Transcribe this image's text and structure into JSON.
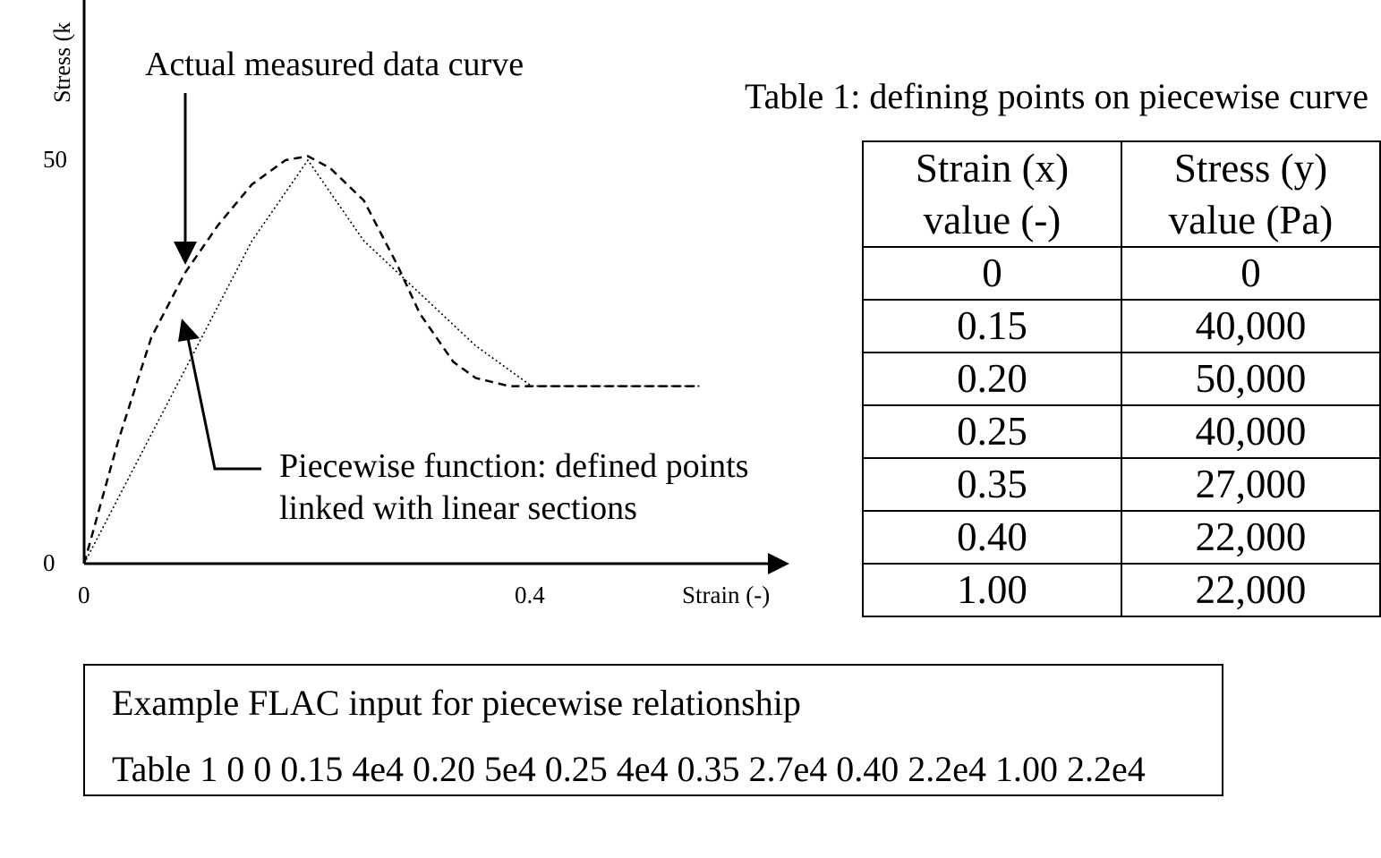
{
  "chart": {
    "ylabel": "Stress (k",
    "xlabel": "Strain (-)",
    "x_ticks": [
      "0",
      "0.4"
    ],
    "y_ticks": [
      "0",
      "50"
    ],
    "annotation_measured": "Actual measured data curve",
    "annotation_piecewise_line1": "Piecewise function: defined points",
    "annotation_piecewise_line2": "linked with linear sections"
  },
  "chart_data": {
    "type": "line",
    "xlabel": "Strain (-)",
    "ylabel": "Stress (k",
    "xlim": [
      0,
      0.63
    ],
    "ylim": [
      0,
      50
    ],
    "series": [
      {
        "style": "dotted",
        "x": [
          0,
          0.15,
          0.2,
          0.25,
          0.35,
          0.4,
          0.55
        ],
        "y": [
          0,
          40,
          50,
          40,
          27,
          22,
          22
        ]
      },
      {
        "style": "dashed",
        "x": [
          0,
          0.03,
          0.06,
          0.09,
          0.12,
          0.15,
          0.18,
          0.2,
          0.22,
          0.25,
          0.28,
          0.3,
          0.33,
          0.35,
          0.38,
          0.4,
          0.45,
          0.5,
          0.55
        ],
        "y": [
          0,
          15,
          28,
          36,
          42,
          47,
          50,
          50.5,
          49,
          45,
          37,
          31,
          25,
          23,
          22,
          22,
          22,
          22,
          22
        ]
      }
    ]
  },
  "table": {
    "caption": "Table 1: defining points on piecewise curve",
    "headers": [
      {
        "line1": "Strain (x)",
        "line2": "value (-)"
      },
      {
        "line1": "Stress (y)",
        "line2": "value (Pa)"
      }
    ],
    "rows": [
      [
        "0",
        "0"
      ],
      [
        "0.15",
        "40,000"
      ],
      [
        "0.20",
        "50,000"
      ],
      [
        "0.25",
        "40,000"
      ],
      [
        "0.35",
        "27,000"
      ],
      [
        "0.40",
        "22,000"
      ],
      [
        "1.00",
        "22,000"
      ]
    ]
  },
  "flac": {
    "title": "Example FLAC input for piecewise relationship",
    "command": "Table 1 0 0 0.15 4e4 0.20 5e4 0.25 4e4 0.35 2.7e4 0.40 2.2e4 1.00 2.2e4"
  }
}
